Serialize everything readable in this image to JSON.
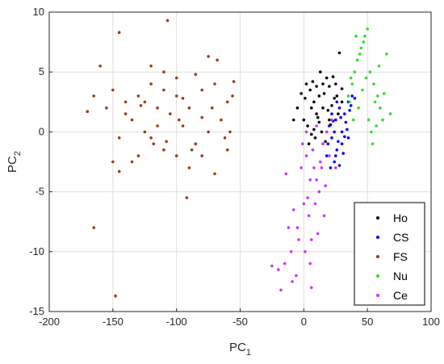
{
  "chart_data": {
    "type": "scatter",
    "title": "",
    "xlabel": {
      "main": "PC",
      "sub": "1"
    },
    "ylabel": {
      "main": "PC",
      "sub": "2"
    },
    "xlim": [
      -200,
      100
    ],
    "ylim": [
      -15,
      10
    ],
    "xticks": [
      -200,
      -150,
      -100,
      -50,
      0,
      50,
      100
    ],
    "yticks": [
      -15,
      -10,
      -5,
      0,
      5,
      10
    ],
    "xtick_labels": [
      "-200",
      "-150",
      "-100",
      "-50",
      "0",
      "50",
      "100"
    ],
    "ytick_labels": [
      "-15",
      "-10",
      "-5",
      "0",
      "5",
      "10"
    ],
    "grid": true,
    "legend_position": "bottom-right",
    "series": [
      {
        "name": "Ho",
        "color": "#000000",
        "points": [
          [
            2,
            4
          ],
          [
            5,
            3.5
          ],
          [
            8,
            2.5
          ],
          [
            10,
            1.5
          ],
          [
            12,
            3
          ],
          [
            15,
            2
          ],
          [
            18,
            4.5
          ],
          [
            20,
            3.8
          ],
          [
            22,
            2.2
          ],
          [
            25,
            4
          ],
          [
            0,
            1
          ],
          [
            3,
            0.5
          ],
          [
            6,
            2
          ],
          [
            9,
            -0.5
          ],
          [
            11,
            1.2
          ],
          [
            14,
            0
          ],
          [
            16,
            3.2
          ],
          [
            19,
            1.8
          ],
          [
            21,
            0.6
          ],
          [
            24,
            2.8
          ],
          [
            27,
            1.5
          ],
          [
            30,
            3.6
          ],
          [
            -5,
            2
          ],
          [
            -8,
            1
          ],
          [
            7,
            4.2
          ],
          [
            13,
            5
          ],
          [
            17,
            -0.8
          ],
          [
            23,
            4.6
          ],
          [
            4,
            -1
          ],
          [
            10,
            3.8
          ],
          [
            28,
            6.6
          ],
          [
            30,
            2.5
          ],
          [
            1,
            2.8
          ],
          [
            8,
            0.2
          ],
          [
            15,
            4
          ],
          [
            20,
            1
          ],
          [
            -2,
            3.2
          ],
          [
            6,
            -0.2
          ],
          [
            12,
            0.8
          ],
          [
            26,
            3
          ]
        ]
      },
      {
        "name": "CS",
        "color": "#0000ff",
        "points": [
          [
            20,
            0.5
          ],
          [
            22,
            -0.5
          ],
          [
            25,
            1
          ],
          [
            28,
            2
          ],
          [
            30,
            0
          ],
          [
            32,
            1.5
          ],
          [
            35,
            2.5
          ],
          [
            26,
            -1.5
          ],
          [
            24,
            -2.5
          ],
          [
            18,
            -2
          ],
          [
            30,
            -1
          ],
          [
            33,
            0.8
          ],
          [
            36,
            1.8
          ],
          [
            38,
            3
          ],
          [
            21,
            -3
          ],
          [
            27,
            -0.8
          ],
          [
            29,
            1.2
          ],
          [
            31,
            -1.8
          ],
          [
            34,
            0.2
          ],
          [
            23,
            0.9
          ],
          [
            19,
            -1
          ],
          [
            25,
            -2
          ],
          [
            37,
            2.2
          ],
          [
            40,
            2.8
          ],
          [
            28,
            -2.8
          ],
          [
            32,
            -0.4
          ],
          [
            22,
            1.5
          ],
          [
            26,
            2.5
          ],
          [
            35,
            -0.5
          ],
          [
            24,
            0
          ]
        ]
      },
      {
        "name": "FS",
        "color": "#a0361a",
        "points": [
          [
            -145,
            8.3
          ],
          [
            -107,
            9.3
          ],
          [
            -110,
            5
          ],
          [
            -100,
            4.5
          ],
          [
            -120,
            5.5
          ],
          [
            -130,
            3
          ],
          [
            -140,
            2.5
          ],
          [
            -150,
            3.5
          ],
          [
            -90,
            2
          ],
          [
            -80,
            3.5
          ],
          [
            -70,
            4
          ],
          [
            -60,
            2.5
          ],
          [
            -55,
            4.2
          ],
          [
            -65,
            1
          ],
          [
            -75,
            0
          ],
          [
            -85,
            -1
          ],
          [
            -95,
            0.5
          ],
          [
            -105,
            1.5
          ],
          [
            -115,
            2
          ],
          [
            -125,
            0
          ],
          [
            -135,
            1
          ],
          [
            -145,
            -0.5
          ],
          [
            -155,
            2
          ],
          [
            -160,
            5.5
          ],
          [
            -165,
            3
          ],
          [
            -170,
            1.7
          ],
          [
            -100,
            -2
          ],
          [
            -110,
            -1.5
          ],
          [
            -120,
            -0.5
          ],
          [
            -130,
            -2
          ],
          [
            -90,
            -3
          ],
          [
            -70,
            -3.5
          ],
          [
            -60,
            -1.5
          ],
          [
            -58,
            0
          ],
          [
            -80,
            -2
          ],
          [
            -100,
            3
          ],
          [
            -110,
            3.5
          ],
          [
            -115,
            0.5
          ],
          [
            -125,
            2.5
          ],
          [
            -140,
            1.5
          ],
          [
            -92,
            -5.5
          ],
          [
            -145,
            -3.3
          ],
          [
            -150,
            -2.5
          ],
          [
            -165,
            -8
          ],
          [
            -148,
            -13.7
          ],
          [
            -135,
            -2.5
          ],
          [
            -75,
            6.3
          ],
          [
            -68,
            6
          ],
          [
            -85,
            4.8
          ],
          [
            -120,
            4
          ],
          [
            -128,
            2.2
          ],
          [
            -108,
            -0.8
          ],
          [
            -95,
            2.8
          ],
          [
            -80,
            1.2
          ],
          [
            -72,
            2
          ],
          [
            -62,
            -0.5
          ],
          [
            -56,
            3
          ],
          [
            -88,
            -1.5
          ],
          [
            -98,
            1
          ],
          [
            -118,
            -1
          ]
        ]
      },
      {
        "name": "Nu",
        "color": "#33dd22",
        "points": [
          [
            35,
            3
          ],
          [
            38,
            4
          ],
          [
            40,
            5
          ],
          [
            42,
            6
          ],
          [
            45,
            7
          ],
          [
            48,
            8
          ],
          [
            50,
            8.6
          ],
          [
            52,
            5
          ],
          [
            55,
            4
          ],
          [
            58,
            3
          ],
          [
            60,
            2
          ],
          [
            62,
            1
          ],
          [
            65,
            6.5
          ],
          [
            68,
            1.5
          ],
          [
            43,
            2
          ],
          [
            46,
            3.5
          ],
          [
            49,
            4.5
          ],
          [
            44,
            6.5
          ],
          [
            47,
            7.5
          ],
          [
            41,
            8
          ],
          [
            39,
            1
          ],
          [
            36,
            2.5
          ],
          [
            53,
            0
          ],
          [
            56,
            2.5
          ],
          [
            59,
            5.5
          ],
          [
            54,
            -1
          ],
          [
            51,
            1
          ],
          [
            57,
            0.5
          ],
          [
            63,
            3.2
          ],
          [
            37,
            4.5
          ]
        ]
      },
      {
        "name": "Ce",
        "color": "#cc33ff",
        "points": [
          [
            5,
            -4
          ],
          [
            0,
            -6
          ],
          [
            -5,
            -8
          ],
          [
            -10,
            -10
          ],
          [
            -15,
            -11
          ],
          [
            -20,
            -11.5
          ],
          [
            -25,
            -11.2
          ],
          [
            -18,
            -13.2
          ],
          [
            2,
            -2
          ],
          [
            8,
            -3
          ],
          [
            12,
            -5
          ],
          [
            15,
            -1
          ],
          [
            10,
            0.5
          ],
          [
            18,
            0
          ],
          [
            20,
            -2
          ],
          [
            22,
            1
          ],
          [
            25,
            -3
          ],
          [
            -2,
            -3
          ],
          [
            4,
            -7
          ],
          [
            6,
            -9
          ],
          [
            -8,
            -6.5
          ],
          [
            -12,
            -8
          ],
          [
            3,
            -5.5
          ],
          [
            7,
            -1.5
          ],
          [
            10,
            -4
          ],
          [
            14,
            -3
          ],
          [
            -4,
            -9
          ],
          [
            -6,
            -12
          ],
          [
            1,
            -10
          ],
          [
            9,
            -6
          ],
          [
            -14,
            -3.5
          ],
          [
            16,
            -7
          ],
          [
            11,
            -8.5
          ],
          [
            -1,
            -1
          ],
          [
            5,
            -11
          ],
          [
            -9,
            -12.5
          ],
          [
            13,
            -2.5
          ],
          [
            17,
            -4.5
          ],
          [
            2,
            0
          ],
          [
            6,
            -13
          ]
        ]
      }
    ]
  },
  "colors": {
    "axis": "#262626",
    "grid": "#dedede",
    "background": "#ffffff"
  }
}
